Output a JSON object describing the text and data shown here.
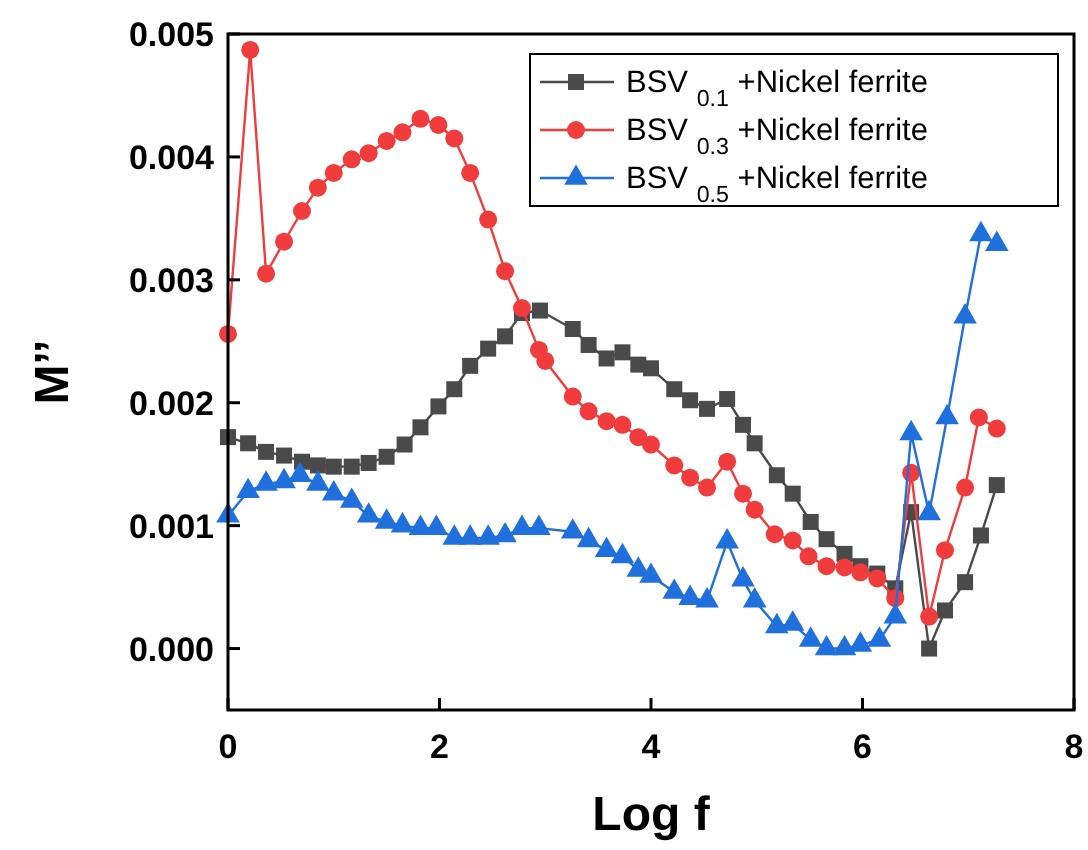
{
  "chart_data": {
    "type": "line",
    "xlabel": "Log f",
    "ylabel": "M’’",
    "xlim": [
      0,
      8
    ],
    "xticks": [
      0,
      2,
      4,
      6,
      8
    ],
    "ylim": [
      -0.0005,
      0.005
    ],
    "yticks": [
      {
        "value": 0,
        "label": "0.000"
      },
      {
        "value": 0.001,
        "label": "0.001"
      },
      {
        "value": 0.002,
        "label": "0.002"
      },
      {
        "value": 0.003,
        "label": "0.003"
      },
      {
        "value": 0.004,
        "label": "0.004"
      },
      {
        "value": 0.005,
        "label": "0.005"
      }
    ],
    "grid": false,
    "legend": "top right",
    "line_style": "solid",
    "series": [
      {
        "name": "BSV $_{0.1}$ +Nickel ferrite",
        "color": "#4a4a4a",
        "marker": "square",
        "x": [
          0,
          0.19,
          0.36,
          0.53,
          0.7,
          0.85,
          1,
          1.17,
          1.33,
          1.5,
          1.67,
          1.82,
          1.99,
          2.14,
          2.29,
          2.46,
          2.62,
          2.78,
          2.95,
          3.26,
          3.41,
          3.58,
          3.73,
          3.88,
          4,
          4.22,
          4.37,
          4.53,
          4.72,
          4.87,
          4.98,
          5.19,
          5.34,
          5.51,
          5.66,
          5.83,
          5.98,
          6.14,
          6.31,
          6.46,
          6.63,
          6.78,
          6.97,
          7.12,
          7.27
        ],
        "values": [
          0.00172,
          0.00167,
          0.0016,
          0.00157,
          0.00152,
          0.00149,
          0.00148,
          0.00148,
          0.00151,
          0.00156,
          0.00166,
          0.0018,
          0.00197,
          0.00211,
          0.0023,
          0.00244,
          0.00254,
          0.00273,
          0.00275,
          0.0026,
          0.00247,
          0.00236,
          0.00241,
          0.00231,
          0.00228,
          0.00211,
          0.00202,
          0.00195,
          0.00203,
          0.00182,
          0.00167,
          0.00141,
          0.00126,
          0.00103,
          0.00089,
          0.00077,
          0.00067,
          0.00061,
          0.00049,
          0.00111,
          0.0,
          0.00031,
          0.00054,
          0.00092,
          0.00133
        ]
      },
      {
        "name": "BSV $_{0.3}$ +Nickel ferrite",
        "color": "#f03c3c",
        "marker": "circle",
        "x": [
          0,
          0.21,
          0.36,
          0.53,
          0.7,
          0.85,
          1,
          1.17,
          1.33,
          1.5,
          1.65,
          1.82,
          1.99,
          2.14,
          2.29,
          2.46,
          2.62,
          2.78,
          2.94,
          3,
          3.26,
          3.41,
          3.58,
          3.73,
          3.88,
          4,
          4.22,
          4.37,
          4.53,
          4.72,
          4.87,
          4.98,
          5.17,
          5.34,
          5.49,
          5.66,
          5.83,
          5.98,
          6.14,
          6.31,
          6.46,
          6.63,
          6.78,
          6.97,
          7.1,
          7.27
        ],
        "values": [
          0.00256,
          0.00487,
          0.00305,
          0.00331,
          0.00356,
          0.00375,
          0.00387,
          0.00398,
          0.00403,
          0.00413,
          0.0042,
          0.00431,
          0.00426,
          0.00415,
          0.00387,
          0.00349,
          0.00307,
          0.00277,
          0.00243,
          0.00234,
          0.00205,
          0.00193,
          0.00185,
          0.00182,
          0.00172,
          0.00166,
          0.00149,
          0.00139,
          0.00131,
          0.00152,
          0.00126,
          0.00113,
          0.00093,
          0.00088,
          0.00075,
          0.00067,
          0.00066,
          0.00062,
          0.00057,
          0.00041,
          0.00143,
          0.00026,
          0.0008,
          0.00131,
          0.00188,
          0.00179
        ]
      },
      {
        "name": "BSV $_{0.5}$ +Nickel ferrite",
        "color": "#1f6fdc",
        "marker": "triangle",
        "x": [
          0,
          0.19,
          0.36,
          0.53,
          0.68,
          0.85,
          1,
          1.17,
          1.33,
          1.5,
          1.65,
          1.82,
          1.97,
          2.14,
          2.29,
          2.46,
          2.62,
          2.78,
          2.94,
          3.26,
          3.41,
          3.58,
          3.73,
          3.88,
          4,
          4.22,
          4.37,
          4.53,
          4.72,
          4.87,
          4.98,
          5.19,
          5.34,
          5.51,
          5.66,
          5.83,
          5.98,
          6.16,
          6.31,
          6.46,
          6.63,
          6.8,
          6.97,
          7.12,
          7.27
        ],
        "values": [
          0.00108,
          0.00128,
          0.00134,
          0.00136,
          0.00141,
          0.00134,
          0.00126,
          0.0012,
          0.00108,
          0.00103,
          0.001,
          0.00098,
          0.00098,
          0.0009,
          0.0009,
          0.0009,
          0.00092,
          0.00098,
          0.00098,
          0.00095,
          0.00088,
          0.0008,
          0.00075,
          0.00064,
          0.00059,
          0.00046,
          0.00041,
          0.00039,
          0.00087,
          0.00056,
          0.00039,
          0.00018,
          0.0002,
          7e-05,
          0.0,
          0.0,
          3e-05,
          7e-05,
          0.00026,
          0.00175,
          0.0011,
          0.00188,
          0.0027,
          0.00337,
          0.00329
        ]
      }
    ]
  }
}
